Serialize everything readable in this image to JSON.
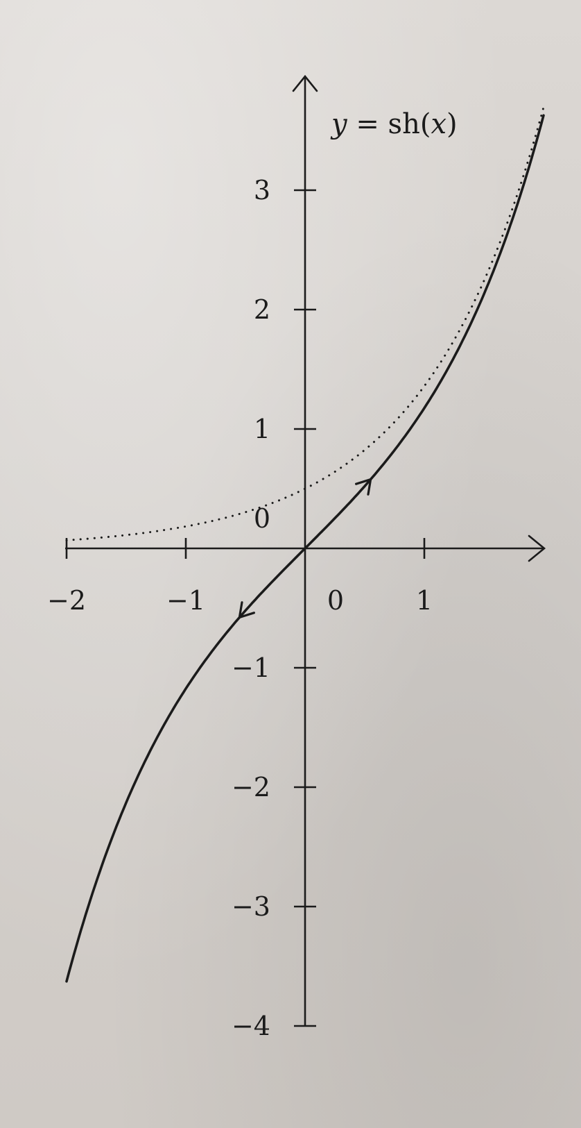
{
  "chart_data": {
    "type": "line",
    "title": "y = sh(x)",
    "title_parts": {
      "y": "y",
      "eq": " = sh(",
      "x": "x",
      "close": ")"
    },
    "xlim": [
      -2,
      2
    ],
    "ylim": [
      -4,
      3.6
    ],
    "x_ticks": [
      {
        "value": -2,
        "label": "−2"
      },
      {
        "value": -1,
        "label": "−1"
      },
      {
        "value": 0,
        "label": "0"
      },
      {
        "value": 1,
        "label": "1"
      }
    ],
    "y_ticks": [
      {
        "value": 3,
        "label": "3"
      },
      {
        "value": 2,
        "label": "2"
      },
      {
        "value": 1,
        "label": "1"
      },
      {
        "value": 0,
        "label": "0"
      },
      {
        "value": -1,
        "label": "−1"
      },
      {
        "value": -2,
        "label": "−2"
      },
      {
        "value": -3,
        "label": "−3"
      },
      {
        "value": -4,
        "label": "−4"
      }
    ],
    "grid": false,
    "series": [
      {
        "style": "solid",
        "function": "sinh",
        "x": [
          -2.0,
          -1.75,
          -1.5,
          -1.25,
          -1.0,
          -0.75,
          -0.5,
          -0.25,
          0.0,
          0.25,
          0.5,
          0.75,
          1.0,
          1.25,
          1.5,
          1.75,
          2.0
        ],
        "y": [
          -3.627,
          -2.79,
          -2.129,
          -1.602,
          -1.175,
          -0.822,
          -0.521,
          -0.253,
          0.0,
          0.253,
          0.521,
          0.822,
          1.175,
          1.602,
          2.129,
          2.79,
          3.627
        ],
        "direction_arrows_at_x": [
          0.55,
          -0.55
        ]
      },
      {
        "style": "dotted",
        "function": "exp(x)/2",
        "x": [
          -2.0,
          -1.75,
          -1.5,
          -1.25,
          -1.0,
          -0.75,
          -0.5,
          -0.25,
          0.0,
          0.25,
          0.5,
          0.75,
          1.0,
          1.25,
          1.5,
          1.75,
          2.0
        ],
        "y": [
          0.068,
          0.087,
          0.112,
          0.143,
          0.184,
          0.236,
          0.303,
          0.389,
          0.5,
          0.642,
          0.824,
          1.059,
          1.359,
          1.745,
          2.241,
          2.877,
          3.695
        ]
      }
    ]
  }
}
